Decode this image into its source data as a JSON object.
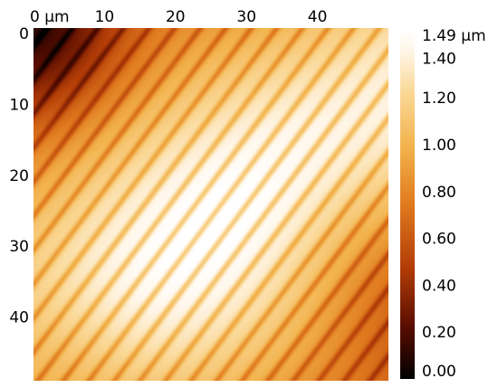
{
  "chart_data": {
    "type": "heatmap",
    "title": "",
    "x_axis": {
      "unit": "µm",
      "position": "top",
      "ticks": [
        0,
        10,
        20,
        30,
        40
      ],
      "tick_labels": [
        "0 µm",
        "10",
        "20",
        "30",
        "40"
      ],
      "range": [
        0,
        50
      ]
    },
    "y_axis": {
      "position": "left",
      "direction": "downward",
      "ticks": [
        0,
        10,
        20,
        30,
        40
      ],
      "tick_labels": [
        "0",
        "10",
        "20",
        "30",
        "40"
      ],
      "range": [
        0,
        50
      ]
    },
    "colorbar": {
      "unit": "µm",
      "colormap": "afmhot",
      "range": [
        0,
        1.49
      ],
      "ticks": [
        0,
        0.2,
        0.4,
        0.6,
        0.8,
        1.0,
        1.2,
        1.4,
        1.49
      ],
      "tick_labels": [
        "0.00",
        "0.20",
        "0.40",
        "0.60",
        "0.80",
        "1.00",
        "1.20",
        "1.40",
        "1.49 µm"
      ],
      "colors": [
        "#000000",
        "#5a0d00",
        "#b33d07",
        "#e07a1f",
        "#f2b14a",
        "#fad896",
        "#fff6e8",
        "#ffffff"
      ]
    },
    "surface": {
      "description_values": {
        "stripe_direction": "diagonal, descending to the right",
        "stripe_period": 3.6,
        "peak_height": 1.49,
        "min_height": 0.0
      }
    },
    "grid": false,
    "legend": "colorbar-right"
  }
}
